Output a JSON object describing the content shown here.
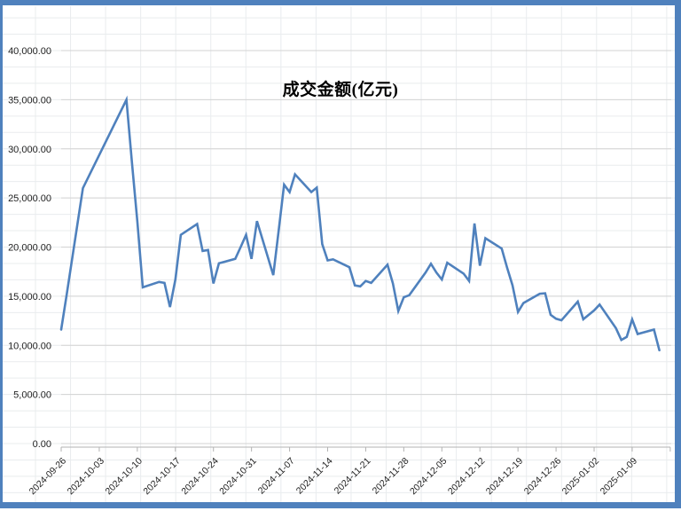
{
  "chart_data": {
    "type": "line",
    "title": "成交金额(亿元)",
    "series_name": "成交金额",
    "x": [
      "2024-09-26",
      "2024-09-27",
      "2024-09-30",
      "2024-10-08",
      "2024-10-09",
      "2024-10-10",
      "2024-10-11",
      "2024-10-14",
      "2024-10-15",
      "2024-10-16",
      "2024-10-17",
      "2024-10-18",
      "2024-10-21",
      "2024-10-22",
      "2024-10-23",
      "2024-10-24",
      "2024-10-25",
      "2024-10-28",
      "2024-10-29",
      "2024-10-30",
      "2024-10-31",
      "2024-11-01",
      "2024-11-04",
      "2024-11-05",
      "2024-11-06",
      "2024-11-07",
      "2024-11-08",
      "2024-11-11",
      "2024-11-12",
      "2024-11-13",
      "2024-11-14",
      "2024-11-15",
      "2024-11-18",
      "2024-11-19",
      "2024-11-20",
      "2024-11-21",
      "2024-11-22",
      "2024-11-25",
      "2024-11-26",
      "2024-11-27",
      "2024-11-28",
      "2024-11-29",
      "2024-12-02",
      "2024-12-03",
      "2024-12-04",
      "2024-12-05",
      "2024-12-06",
      "2024-12-09",
      "2024-12-10",
      "2024-12-11",
      "2024-12-12",
      "2024-12-13",
      "2024-12-16",
      "2024-12-17",
      "2024-12-18",
      "2024-12-19",
      "2024-12-20",
      "2024-12-23",
      "2024-12-24",
      "2024-12-25",
      "2024-12-26",
      "2024-12-27",
      "2024-12-30",
      "2024-12-31",
      "2025-01-02",
      "2025-01-03",
      "2025-01-06",
      "2025-01-07",
      "2025-01-08",
      "2025-01-09",
      "2025-01-10",
      "2025-01-13",
      "2025-01-14"
    ],
    "values": [
      11600,
      15100,
      26000,
      35000,
      28700,
      22600,
      15900,
      16450,
      16350,
      13900,
      16700,
      21250,
      22350,
      19600,
      19700,
      16300,
      18350,
      18800,
      20000,
      21250,
      18800,
      22650,
      17150,
      21700,
      26350,
      25600,
      27400,
      25600,
      26050,
      20300,
      18650,
      18750,
      17950,
      16100,
      16000,
      16550,
      16350,
      18200,
      16300,
      13500,
      14900,
      15100,
      17400,
      18300,
      17400,
      16700,
      18400,
      17300,
      16550,
      22400,
      18100,
      20900,
      19850,
      17900,
      16100,
      13400,
      14300,
      15250,
      15300,
      13100,
      12700,
      12550,
      14450,
      12650,
      13550,
      14150,
      11750,
      10550,
      10850,
      12640,
      11150,
      11600,
      9500
    ],
    "ylim": [
      0,
      40000
    ],
    "y_tick_interval": 5000,
    "y_tick_labels": [
      "0.00",
      "5,000.00",
      "10,000.00",
      "15,000.00",
      "20,000.00",
      "25,000.00",
      "30,000.00",
      "35,000.00",
      "40,000.00"
    ],
    "x_tick_labels": [
      "2024-09-26",
      "2024-10-03",
      "2024-10-10",
      "2024-10-17",
      "2024-10-24",
      "2024-10-31",
      "2024-11-07",
      "2024-11-14",
      "2024-11-21",
      "2024-11-28",
      "2024-12-05",
      "2024-12-12",
      "2024-12-19",
      "2024-12-26",
      "2025-01-02",
      "2025-01-09"
    ],
    "x_label_interval_days": 7,
    "grid": "on",
    "legend": "none",
    "line_color": "#4f81bd"
  },
  "colors": {
    "frame_border": "#4f81bd",
    "chart_gridline": "#d3d3d3",
    "sheet_gridline": "#e9ecee",
    "axis_line": "#b3b3b3",
    "tick_label": "#1f1f1f"
  }
}
